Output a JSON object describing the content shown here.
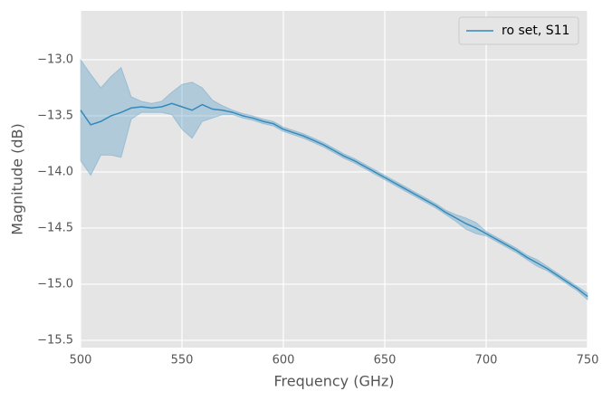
{
  "chart_data": {
    "type": "line",
    "xlabel": "Frequency (GHz)",
    "ylabel": "Magnitude (dB)",
    "x": [
      500,
      505,
      510,
      515,
      520,
      525,
      530,
      535,
      540,
      545,
      550,
      555,
      560,
      565,
      570,
      575,
      580,
      585,
      590,
      595,
      600,
      605,
      610,
      615,
      620,
      625,
      630,
      635,
      640,
      645,
      650,
      655,
      660,
      665,
      670,
      675,
      680,
      685,
      690,
      695,
      700,
      705,
      710,
      715,
      720,
      725,
      730,
      735,
      740,
      745,
      750
    ],
    "series": [
      {
        "name": "ro set, S11",
        "color": "#348abd",
        "values": [
          -13.45,
          -13.58,
          -13.55,
          -13.5,
          -13.47,
          -13.43,
          -13.42,
          -13.43,
          -13.42,
          -13.39,
          -13.42,
          -13.45,
          -13.4,
          -13.44,
          -13.45,
          -13.47,
          -13.5,
          -13.52,
          -13.55,
          -13.57,
          -13.62,
          -13.65,
          -13.68,
          -13.72,
          -13.76,
          -13.81,
          -13.86,
          -13.9,
          -13.95,
          -14.0,
          -14.05,
          -14.1,
          -14.15,
          -14.2,
          -14.25,
          -14.3,
          -14.36,
          -14.41,
          -14.46,
          -14.5,
          -14.55,
          -14.6,
          -14.65,
          -14.7,
          -14.76,
          -14.81,
          -14.86,
          -14.92,
          -14.98,
          -15.04,
          -15.11
        ],
        "upper": [
          -13.0,
          -13.13,
          -13.25,
          -13.15,
          -13.07,
          -13.33,
          -13.37,
          -13.39,
          -13.37,
          -13.29,
          -13.22,
          -13.2,
          -13.25,
          -13.36,
          -13.41,
          -13.45,
          -13.48,
          -13.5,
          -13.53,
          -13.55,
          -13.6,
          -13.63,
          -13.66,
          -13.7,
          -13.74,
          -13.79,
          -13.84,
          -13.88,
          -13.93,
          -13.98,
          -14.03,
          -14.08,
          -14.13,
          -14.18,
          -14.23,
          -14.28,
          -14.34,
          -14.38,
          -14.41,
          -14.45,
          -14.53,
          -14.58,
          -14.63,
          -14.68,
          -14.74,
          -14.78,
          -14.84,
          -14.9,
          -14.96,
          -15.02,
          -15.08
        ],
        "lower": [
          -13.9,
          -14.03,
          -13.85,
          -13.85,
          -13.87,
          -13.53,
          -13.47,
          -13.47,
          -13.47,
          -13.49,
          -13.62,
          -13.7,
          -13.55,
          -13.52,
          -13.49,
          -13.49,
          -13.52,
          -13.54,
          -13.57,
          -13.59,
          -13.64,
          -13.67,
          -13.7,
          -13.74,
          -13.78,
          -13.83,
          -13.88,
          -13.92,
          -13.97,
          -14.02,
          -14.07,
          -14.12,
          -14.17,
          -14.22,
          -14.27,
          -14.32,
          -14.38,
          -14.44,
          -14.51,
          -14.55,
          -14.57,
          -14.62,
          -14.67,
          -14.72,
          -14.78,
          -14.84,
          -14.88,
          -14.94,
          -15.0,
          -15.06,
          -15.14
        ]
      }
    ],
    "xlim": [
      500,
      750
    ],
    "xticks": [
      500,
      550,
      600,
      650,
      700,
      750
    ],
    "ylim": [
      -15.565,
      -12.565
    ],
    "yticks": [
      {
        "value": -15.5,
        "label": "−15.5"
      },
      {
        "value": -15.0,
        "label": "−15.0"
      },
      {
        "value": -14.5,
        "label": "−14.5"
      },
      {
        "value": -14.0,
        "label": "−14.0"
      },
      {
        "value": -13.5,
        "label": "−13.5"
      },
      {
        "value": -13.0,
        "label": "−13.0"
      }
    ],
    "grid": true,
    "legend": "upper right"
  }
}
